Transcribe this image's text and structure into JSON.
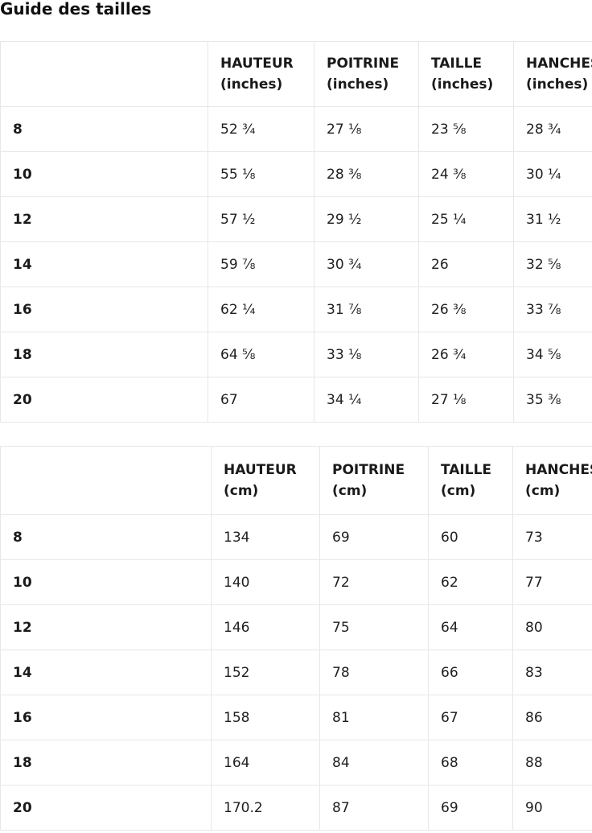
{
  "page": {
    "title": "Guide des tailles"
  },
  "colors": {
    "background": "#ffffff",
    "text": "#1a1a1a",
    "border": "#e7e7e7"
  },
  "tables": [
    {
      "name": "inches",
      "columns": [
        {
          "label": "HAUTEUR",
          "unit": "(inches)"
        },
        {
          "label": "POITRINE",
          "unit": "(inches)"
        },
        {
          "label": "TAILLE",
          "unit": "(inches)"
        },
        {
          "label": "HANCHES",
          "unit": "(inches)"
        }
      ],
      "rows": [
        {
          "size": "8",
          "values": [
            "52 ¾",
            "27 ⅛",
            "23 ⅝",
            "28 ¾"
          ]
        },
        {
          "size": "10",
          "values": [
            "55 ⅛",
            "28 ⅜",
            "24 ⅜",
            "30 ¼"
          ]
        },
        {
          "size": "12",
          "values": [
            "57 ½",
            "29 ½",
            "25 ¼",
            "31 ½"
          ]
        },
        {
          "size": "14",
          "values": [
            "59 ⅞",
            "30 ¾",
            "26",
            "32 ⅝"
          ]
        },
        {
          "size": "16",
          "values": [
            "62 ¼",
            "31 ⅞",
            "26 ⅜",
            "33 ⅞"
          ]
        },
        {
          "size": "18",
          "values": [
            "64 ⅝",
            "33 ⅛",
            "26 ¾",
            "34 ⅝"
          ]
        },
        {
          "size": "20",
          "values": [
            "67",
            "34 ¼",
            "27 ⅛",
            "35 ⅜"
          ]
        }
      ]
    },
    {
      "name": "cm",
      "columns": [
        {
          "label": "HAUTEUR",
          "unit": "(cm)"
        },
        {
          "label": "POITRINE",
          "unit": "(cm)"
        },
        {
          "label": "TAILLE",
          "unit": "(cm)"
        },
        {
          "label": "HANCHES",
          "unit": "(cm)"
        }
      ],
      "rows": [
        {
          "size": "8",
          "values": [
            "134",
            "69",
            "60",
            "73"
          ]
        },
        {
          "size": "10",
          "values": [
            "140",
            "72",
            "62",
            "77"
          ]
        },
        {
          "size": "12",
          "values": [
            "146",
            "75",
            "64",
            "80"
          ]
        },
        {
          "size": "14",
          "values": [
            "152",
            "78",
            "66",
            "83"
          ]
        },
        {
          "size": "16",
          "values": [
            "158",
            "81",
            "67",
            "86"
          ]
        },
        {
          "size": "18",
          "values": [
            "164",
            "84",
            "68",
            "88"
          ]
        },
        {
          "size": "20",
          "values": [
            "170.2",
            "87",
            "69",
            "90"
          ]
        }
      ]
    }
  ]
}
